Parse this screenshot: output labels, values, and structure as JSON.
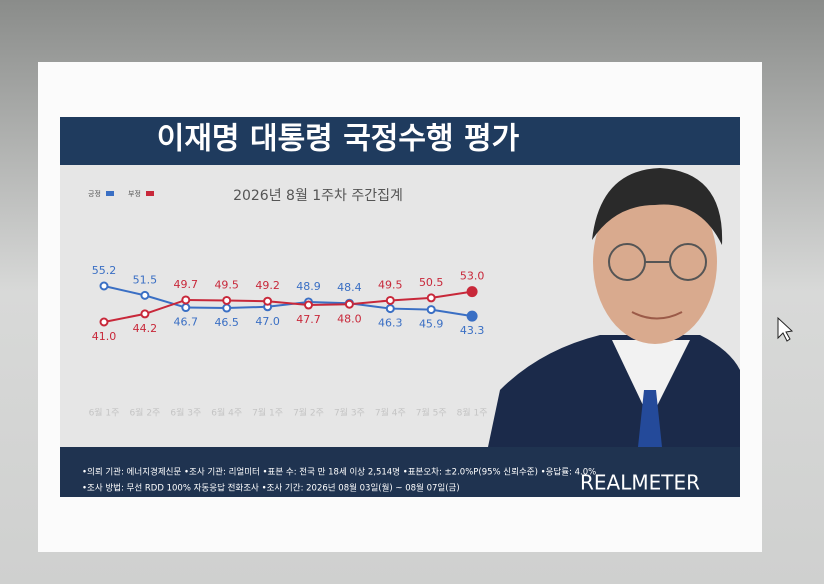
{
  "chart_data": {
    "type": "line",
    "title": "이재명 대통령 국정수행 평가",
    "subtitle": "2026년 8월 1주차 주간집계",
    "categories": [
      "6월 1주",
      "6월 2주",
      "6월 3주",
      "6월 4주",
      "7월 1주",
      "7월 2주",
      "7월 3주",
      "7월 4주",
      "7월 5주",
      "8월 1주"
    ],
    "series": [
      {
        "name": "긍정",
        "color": "#3a6fc4",
        "values": [
          55.2,
          51.5,
          46.7,
          46.5,
          47.0,
          48.9,
          48.4,
          46.3,
          45.9,
          43.3
        ],
        "value_labels": [
          "55.2",
          "51.5",
          "46.7",
          "46.5",
          "47.0",
          "48.9",
          "48.4",
          "46.3",
          "45.9",
          "43.3"
        ]
      },
      {
        "name": "부정",
        "color": "#c8283a",
        "values": [
          41.0,
          44.2,
          49.7,
          49.5,
          49.2,
          47.7,
          48.0,
          49.5,
          50.5,
          53.0
        ],
        "value_labels": [
          "41.0",
          "44.2",
          "49.7",
          "49.5",
          "49.2",
          "47.7",
          "48.0",
          "49.5",
          "50.5",
          "53.0"
        ]
      }
    ],
    "notes": [
      "•의뢰 기관: 에너지경제신문 •조사 기관: 리얼미터 •표본 수: 전국 만 18세 이상 2,514명 •표본오차: ±2.0%P(95% 신뢰수준) •응답률: 4.0%",
      "•조사 방법: 무선 RDD 100% 자동응답 전화조사 •조사 기간: 2026년 08월 03일(월) ~ 08월 07일(금)"
    ],
    "logo": "REALMETER"
  }
}
